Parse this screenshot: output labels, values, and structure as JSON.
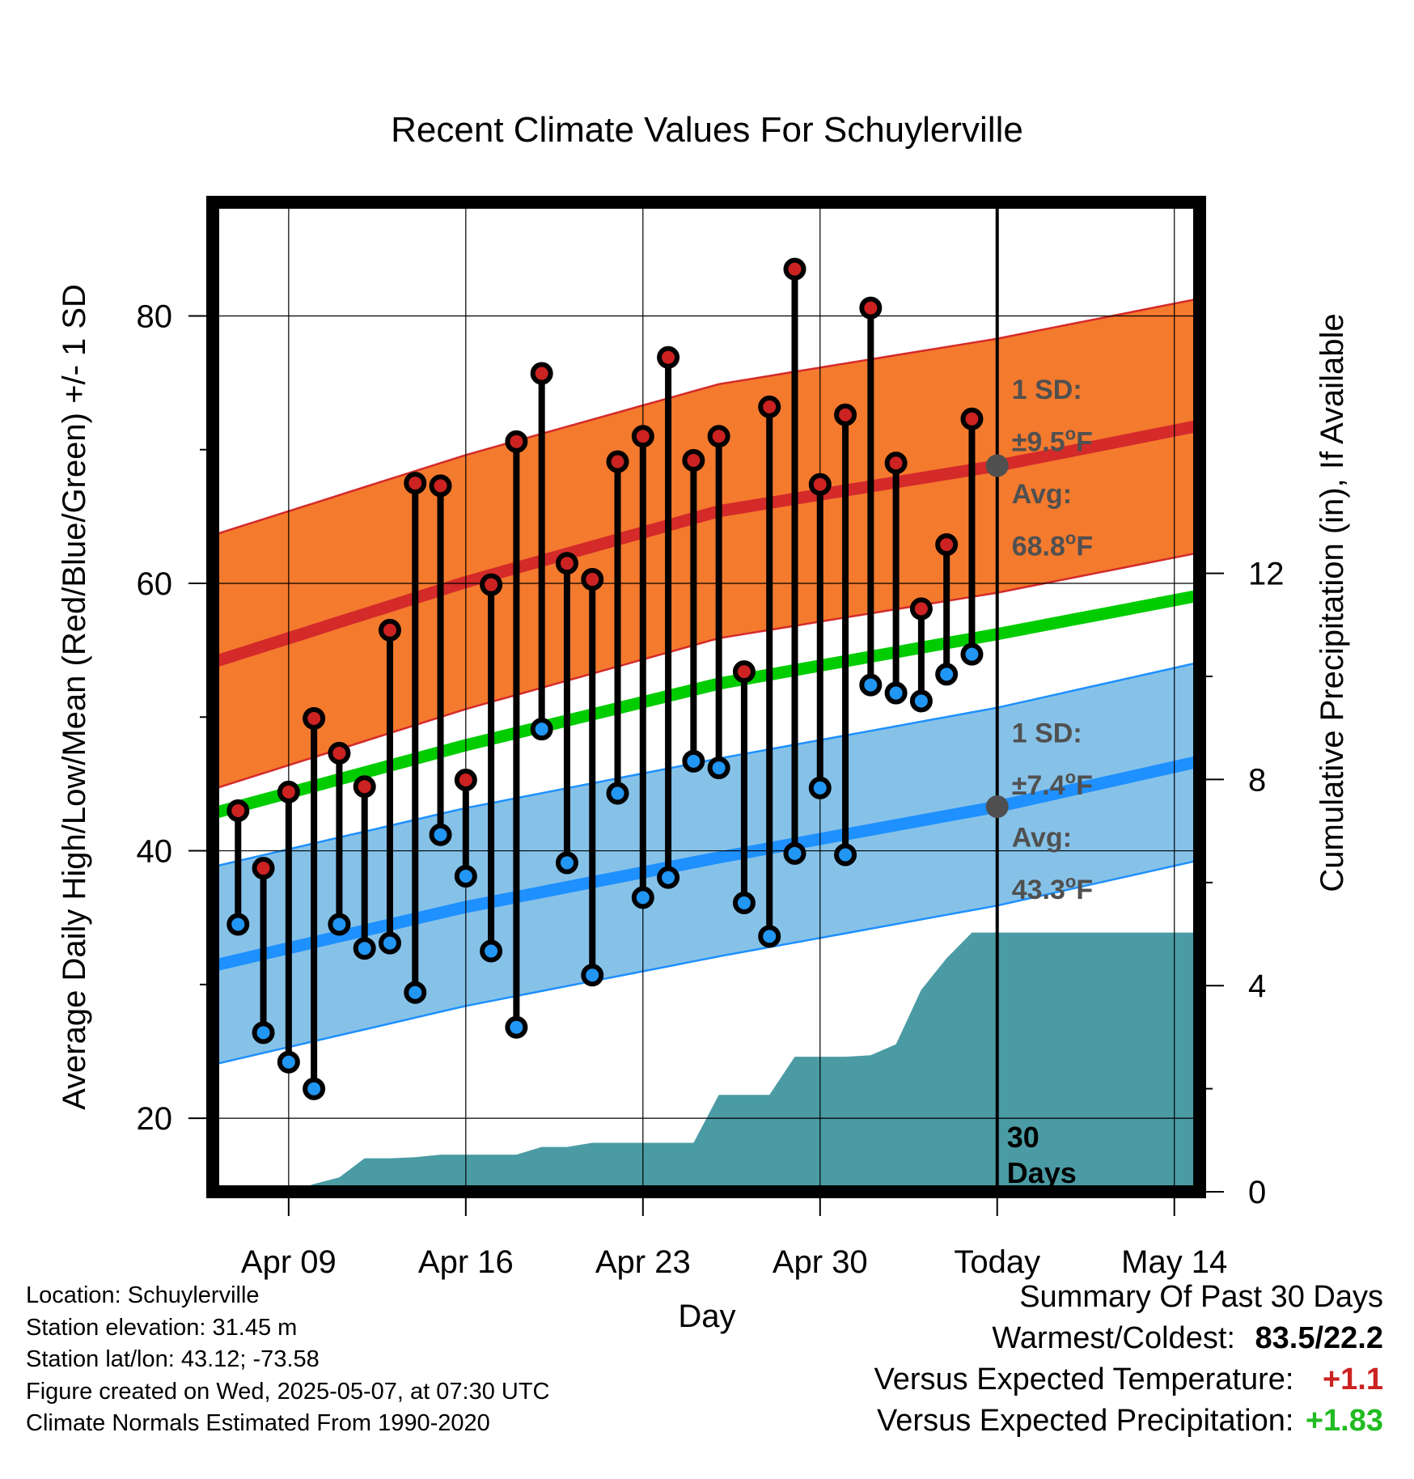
{
  "colors": {
    "high_band": "#f47a2e",
    "high_avg": "#d42a2a",
    "low_band": "#86c2e8",
    "low_avg": "#1e90ff",
    "mean": "#00cc00",
    "precip": "#4a9ba4",
    "high_dot": "#cc2222",
    "low_dot": "#2196f3",
    "positive_temp": "#cc2222",
    "positive_precip": "#22bb22"
  },
  "chart_data": {
    "type": "line",
    "title": "Recent Climate Values For Schuylerville",
    "xlabel": "Day",
    "ylabel": "Average Daily High/Low/Mean (Red/Blue/Green) +/- 1 SD",
    "ylabel_right": "Cumulative Precipitation (in), If Available",
    "xlim": [
      "2025-04-06",
      "2025-05-15"
    ],
    "ylim": [
      14.5,
      88.5
    ],
    "ylim_right": [
      0,
      19.2
    ],
    "x_ticks": [
      {
        "date": "2025-04-09",
        "label": "Apr 09"
      },
      {
        "date": "2025-04-16",
        "label": "Apr 16"
      },
      {
        "date": "2025-04-23",
        "label": "Apr 23"
      },
      {
        "date": "2025-04-30",
        "label": "Apr 30"
      },
      {
        "date": "2025-05-07",
        "label": "Today"
      },
      {
        "date": "2025-05-14",
        "label": "May 14"
      }
    ],
    "y_ticks": [
      20,
      40,
      60,
      80
    ],
    "y_ticks_right": [
      0,
      4,
      8,
      12
    ],
    "grid": true,
    "today": "2025-05-07",
    "today_label": [
      "30",
      "Days"
    ],
    "normals": {
      "dates": [
        "2025-04-06",
        "2025-04-16",
        "2025-04-26",
        "2025-05-07",
        "2025-05-15"
      ],
      "high_avg": [
        54.1,
        60.1,
        65.4,
        68.8,
        71.8
      ],
      "high_sd": 9.5,
      "low_avg": [
        31.4,
        35.8,
        39.5,
        43.3,
        46.7
      ],
      "low_sd": 7.4,
      "mean_avg": [
        42.8,
        47.9,
        52.5,
        56.2,
        59.1
      ]
    },
    "series": [
      {
        "name": "Daily High",
        "x": [
          "2025-04-07",
          "2025-04-08",
          "2025-04-09",
          "2025-04-10",
          "2025-04-11",
          "2025-04-12",
          "2025-04-13",
          "2025-04-14",
          "2025-04-15",
          "2025-04-16",
          "2025-04-17",
          "2025-04-18",
          "2025-04-19",
          "2025-04-20",
          "2025-04-21",
          "2025-04-22",
          "2025-04-23",
          "2025-04-24",
          "2025-04-25",
          "2025-04-26",
          "2025-04-27",
          "2025-04-28",
          "2025-04-29",
          "2025-04-30",
          "2025-05-01",
          "2025-05-02",
          "2025-05-03",
          "2025-05-04",
          "2025-05-05",
          "2025-05-06"
        ],
        "y": [
          43.0,
          38.7,
          44.4,
          49.9,
          47.3,
          44.8,
          56.5,
          67.5,
          67.3,
          45.3,
          59.9,
          70.6,
          75.7,
          61.5,
          60.3,
          69.1,
          71.0,
          76.9,
          69.2,
          71.0,
          53.4,
          73.2,
          83.5,
          67.4,
          72.6,
          80.6,
          69.0,
          58.1,
          62.9,
          72.3
        ]
      },
      {
        "name": "Daily Low",
        "x": [
          "2025-04-07",
          "2025-04-08",
          "2025-04-09",
          "2025-04-10",
          "2025-04-11",
          "2025-04-12",
          "2025-04-13",
          "2025-04-14",
          "2025-04-15",
          "2025-04-16",
          "2025-04-17",
          "2025-04-18",
          "2025-04-19",
          "2025-04-20",
          "2025-04-21",
          "2025-04-22",
          "2025-04-23",
          "2025-04-24",
          "2025-04-25",
          "2025-04-26",
          "2025-04-27",
          "2025-04-28",
          "2025-04-29",
          "2025-04-30",
          "2025-05-01",
          "2025-05-02",
          "2025-05-03",
          "2025-05-04",
          "2025-05-05",
          "2025-05-06"
        ],
        "y": [
          34.5,
          26.4,
          24.2,
          22.2,
          34.5,
          32.7,
          33.1,
          29.4,
          41.2,
          38.1,
          32.5,
          26.8,
          49.1,
          39.1,
          30.7,
          44.3,
          36.5,
          38.0,
          46.7,
          46.2,
          36.1,
          33.6,
          39.8,
          44.7,
          39.7,
          52.4,
          51.8,
          51.2,
          53.2,
          54.7
        ]
      }
    ],
    "precip": {
      "x": [
        "2025-04-06",
        "2025-04-09",
        "2025-04-10",
        "2025-04-11",
        "2025-04-12",
        "2025-04-13",
        "2025-04-14",
        "2025-04-15",
        "2025-04-16",
        "2025-04-17",
        "2025-04-18",
        "2025-04-19",
        "2025-04-20",
        "2025-04-21",
        "2025-04-22",
        "2025-04-23",
        "2025-04-24",
        "2025-04-25",
        "2025-04-26",
        "2025-04-27",
        "2025-04-28",
        "2025-04-29",
        "2025-04-30",
        "2025-05-01",
        "2025-05-02",
        "2025-05-03",
        "2025-05-04",
        "2025-05-05",
        "2025-05-06",
        "2025-05-15"
      ],
      "y": [
        0.0,
        0.0,
        0.15,
        0.28,
        0.65,
        0.65,
        0.67,
        0.72,
        0.72,
        0.72,
        0.72,
        0.87,
        0.87,
        0.95,
        0.95,
        0.95,
        0.95,
        0.95,
        1.88,
        1.88,
        1.88,
        2.62,
        2.62,
        2.62,
        2.65,
        2.86,
        3.92,
        4.53,
        5.03,
        5.03
      ]
    },
    "annotations": {
      "high": {
        "sd_label": "1 SD:",
        "sd_value": "±9.5",
        "avg_label": "Avg:",
        "avg_value": "68.8",
        "unit": "F",
        "degree": "o"
      },
      "low": {
        "sd_label": "1 SD:",
        "sd_value": "±7.4",
        "avg_label": "Avg:",
        "avg_value": "43.3",
        "unit": "F",
        "degree": "o"
      }
    }
  },
  "info": {
    "location": "Location: Schuylerville",
    "elevation": "Station elevation: 31.45 m",
    "latlon": "Station lat/lon: 43.12; -73.58",
    "created": "Figure created on Wed, 2025-05-07, at 07:30 UTC",
    "normals": "Climate Normals Estimated From 1990-2020"
  },
  "summary": {
    "title": "Summary Of Past 30 Days",
    "warm_cold_label": "Warmest/Coldest:",
    "warm_cold_value": "83.5/22.2",
    "temp_label": "Versus Expected Temperature:",
    "temp_value": "+1.1",
    "precip_label": "Versus Expected Precipitation:",
    "precip_value": "+1.83"
  }
}
